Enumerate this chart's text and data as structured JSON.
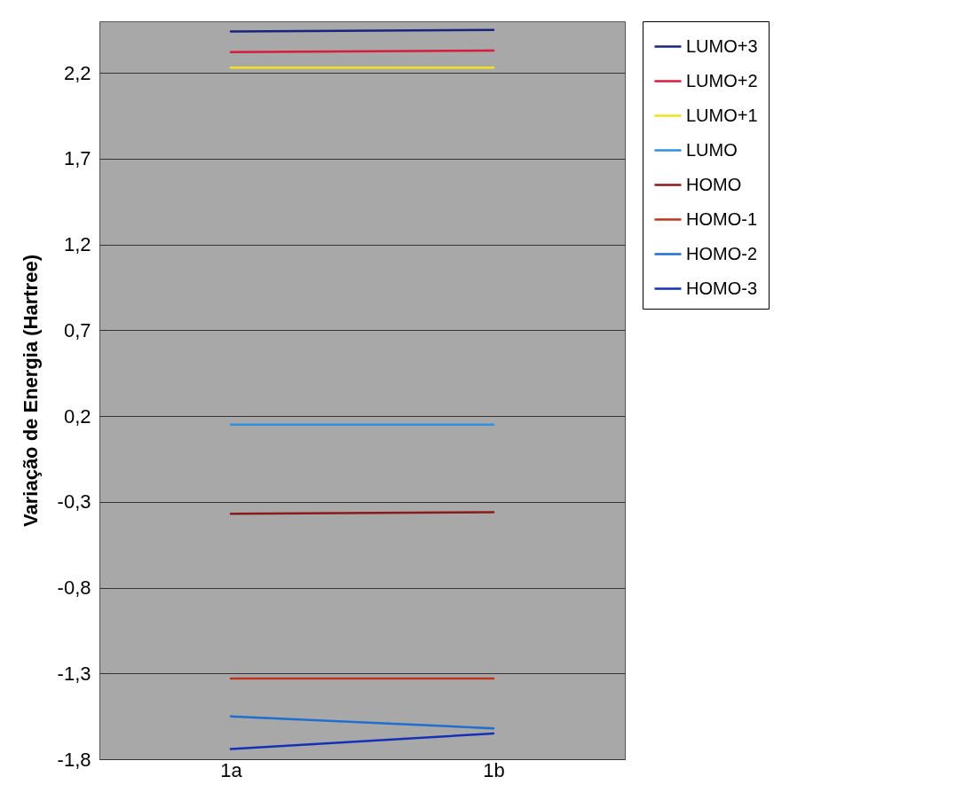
{
  "chart_data": {
    "type": "line",
    "ylabel": "Variação de Energia (Hartree)",
    "categories": [
      "1a",
      "1b"
    ],
    "series": [
      {
        "name": "LUMO+3",
        "color": "#1a237e",
        "values": [
          2.44,
          2.45
        ]
      },
      {
        "name": "LUMO+2",
        "color": "#d81b3c",
        "values": [
          2.32,
          2.33
        ]
      },
      {
        "name": "LUMO+1",
        "color": "#f2e21a",
        "values": [
          2.23,
          2.23
        ]
      },
      {
        "name": "LUMO",
        "color": "#2f8fe0",
        "values": [
          0.15,
          0.15
        ]
      },
      {
        "name": "HOMO",
        "color": "#8b1a1a",
        "values": [
          -0.37,
          -0.36
        ]
      },
      {
        "name": "HOMO-1",
        "color": "#c0341c",
        "values": [
          -1.33,
          -1.33
        ]
      },
      {
        "name": "HOMO-2",
        "color": "#1e6fd0",
        "values": [
          -1.55,
          -1.62
        ]
      },
      {
        "name": "HOMO-3",
        "color": "#1530b8",
        "values": [
          -1.74,
          -1.65
        ]
      }
    ],
    "ylim": [
      -1.8,
      2.5
    ],
    "yticks": [
      {
        "value": -1.8,
        "label": "-1,8"
      },
      {
        "value": -1.3,
        "label": "-1,3"
      },
      {
        "value": -0.8,
        "label": "-0,8"
      },
      {
        "value": -0.3,
        "label": "-0,3"
      },
      {
        "value": 0.2,
        "label": "0,2"
      },
      {
        "value": 0.7,
        "label": "0,7"
      },
      {
        "value": 1.2,
        "label": "1,2"
      },
      {
        "value": 1.7,
        "label": "1,7"
      },
      {
        "value": 2.2,
        "label": "2,2"
      }
    ],
    "grid": "y",
    "legend": "right",
    "marker": "none",
    "line_style": "solid"
  }
}
